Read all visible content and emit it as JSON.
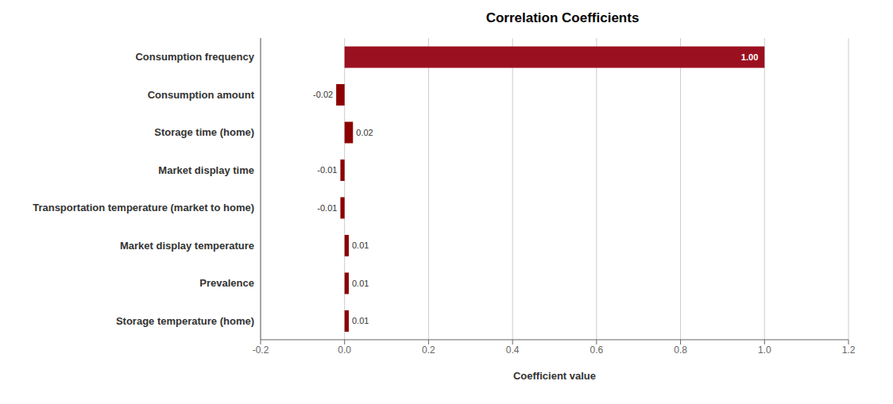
{
  "chart_data": {
    "type": "bar",
    "orientation": "horizontal",
    "title": "Correlation Coefficients",
    "xlabel": "Coefficient value",
    "categories": [
      "Storage temperature (home)",
      "Prevalence",
      "Market display temperature",
      "Transportation temperature (market to home)",
      "Market display time",
      "Storage time (home)",
      "Consumption amount",
      "Consumption frequency"
    ],
    "values": [
      0.01,
      0.01,
      0.01,
      -0.01,
      -0.01,
      0.02,
      -0.02,
      1.0
    ],
    "value_labels": [
      "0.01",
      "0.01",
      "0.01",
      "-0.01",
      "-0.01",
      "0.02",
      "-0.02",
      "1.00"
    ],
    "data_labels": true,
    "colors": [
      "#8B0000",
      "#8B0000",
      "#8B0000",
      "#8B0000",
      "#8B0000",
      "#8B0000",
      "#8B0000",
      "#9B1020"
    ],
    "xlim": [
      -0.2,
      1.2
    ],
    "xticks": [
      -0.2,
      {
        "value": 0,
        "label": "0.0"
      },
      0.2,
      0.4,
      0.6,
      0.8,
      {
        "value": 1,
        "label": "1.0"
      },
      1.2
    ],
    "grid": true
  }
}
